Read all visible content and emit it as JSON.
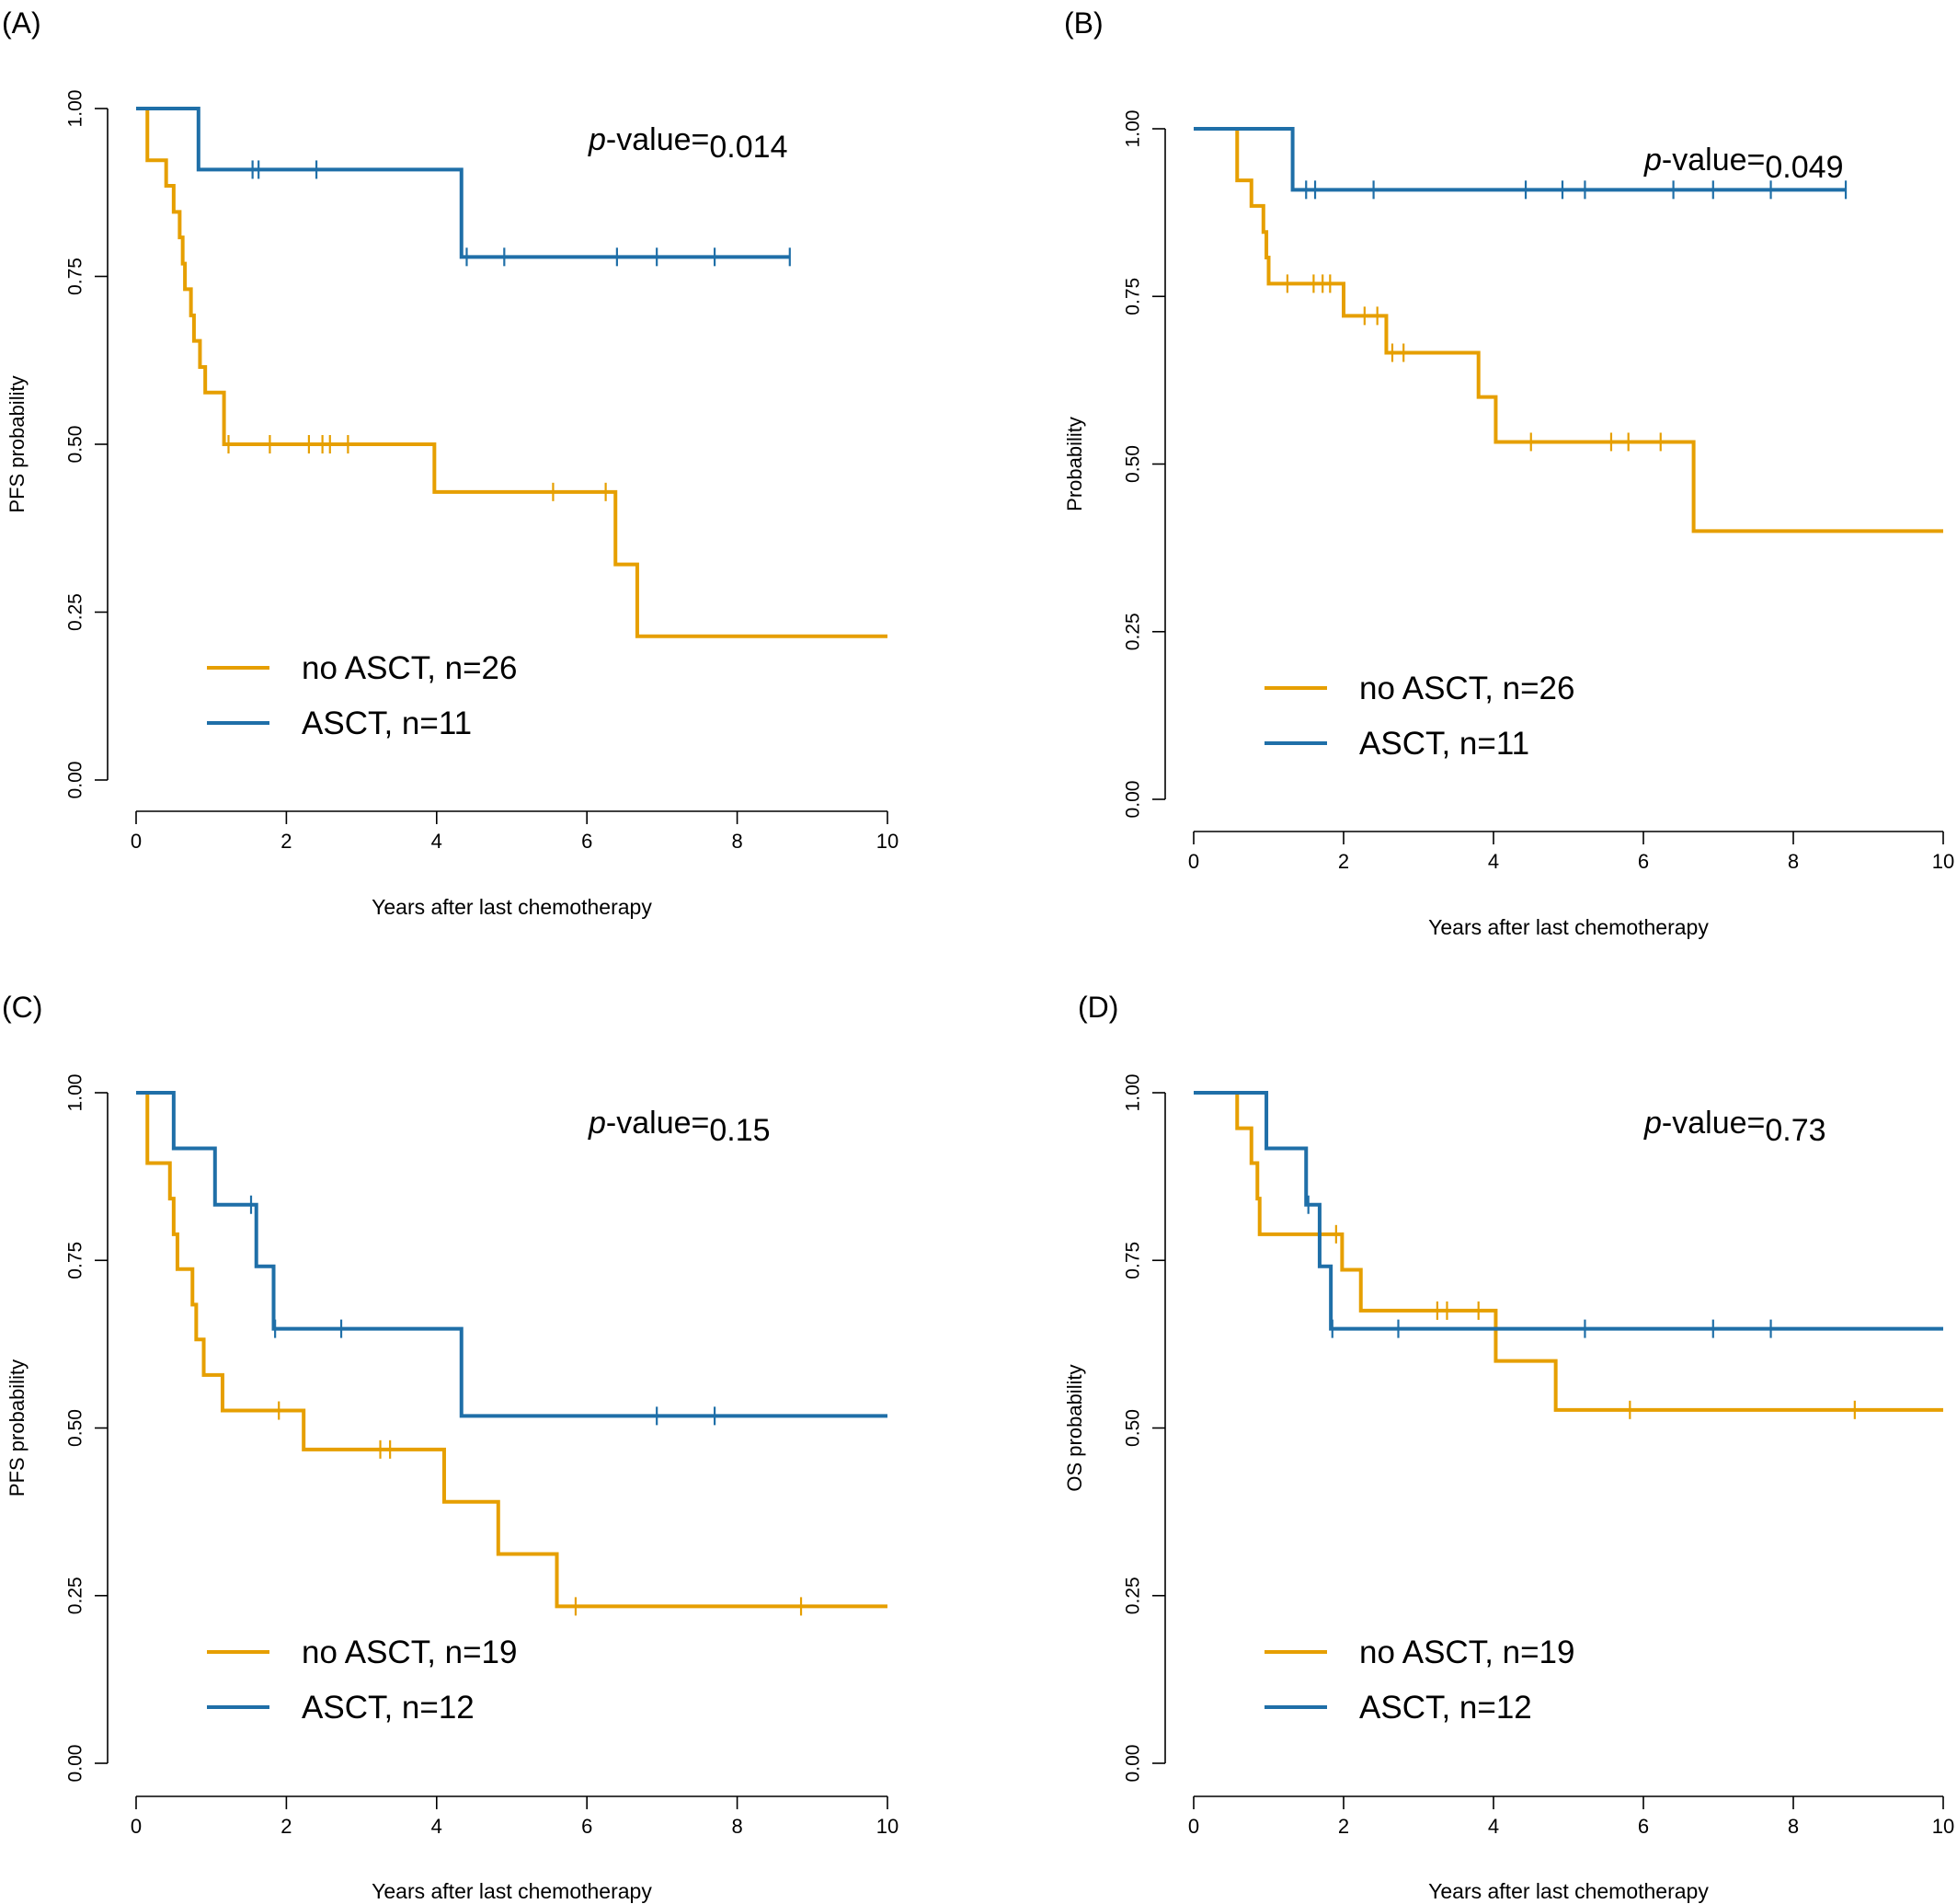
{
  "chart_data": [
    {
      "type": "line",
      "panel_label": "(A)",
      "ylabel": "PFS probability",
      "xlabel": "Years after last chemotherapy",
      "xlim": [
        0,
        10
      ],
      "ylim": [
        0,
        1
      ],
      "x_ticks": [
        "0",
        "2",
        "4",
        "6",
        "8",
        "10"
      ],
      "y_ticks": [
        "0.00",
        "0.25",
        "0.50",
        "0.75",
        "1.00"
      ],
      "pvalue_prefix": "p",
      "pvalue_mid": "-value=",
      "pvalue_value": "0.014",
      "legend": [
        "no ASCT, n=26",
        "ASCT, n=11"
      ],
      "series": [
        {
          "name": "no ASCT, n=26",
          "color": "#E69F00",
          "steps": [
            [
              0,
              1
            ],
            [
              0.15,
              0.923
            ],
            [
              0.4,
              0.885
            ],
            [
              0.5,
              0.846
            ],
            [
              0.58,
              0.808
            ],
            [
              0.62,
              0.769
            ],
            [
              0.65,
              0.731
            ],
            [
              0.73,
              0.692
            ],
            [
              0.77,
              0.654
            ],
            [
              0.85,
              0.615
            ],
            [
              0.92,
              0.577
            ],
            [
              1.17,
              0.5
            ],
            [
              3.97,
              0.429
            ],
            [
              6.38,
              0.321
            ],
            [
              6.67,
              0.214
            ],
            [
              10,
              0.214
            ]
          ],
          "censors": [
            [
              1.23,
              0.5
            ],
            [
              1.78,
              0.5
            ],
            [
              2.3,
              0.5
            ],
            [
              2.48,
              0.5
            ],
            [
              2.58,
              0.5
            ],
            [
              2.82,
              0.5
            ],
            [
              5.55,
              0.429
            ],
            [
              6.25,
              0.429
            ]
          ]
        },
        {
          "name": "ASCT, n=11",
          "color": "#1F6FA8",
          "steps": [
            [
              0,
              1
            ],
            [
              0.83,
              0.909
            ],
            [
              4.33,
              0.779
            ],
            [
              8.7,
              0.779
            ]
          ],
          "censors": [
            [
              1.55,
              0.909
            ],
            [
              1.63,
              0.909
            ],
            [
              2.4,
              0.909
            ],
            [
              4.4,
              0.779
            ],
            [
              4.9,
              0.779
            ],
            [
              6.4,
              0.779
            ],
            [
              6.93,
              0.779
            ],
            [
              7.7,
              0.779
            ],
            [
              8.7,
              0.779
            ]
          ]
        }
      ]
    },
    {
      "type": "line",
      "panel_label": "(B)",
      "ylabel": "Probability",
      "xlabel": "Years after last chemotherapy",
      "xlim": [
        0,
        10
      ],
      "ylim": [
        0,
        1
      ],
      "x_ticks": [
        "0",
        "2",
        "4",
        "6",
        "8",
        "10"
      ],
      "y_ticks": [
        "0.00",
        "0.25",
        "0.50",
        "0.75",
        "1.00"
      ],
      "pvalue_prefix": "p",
      "pvalue_mid": "-value=",
      "pvalue_value": "0.049",
      "legend": [
        "no ASCT, n=26",
        "ASCT, n=11"
      ],
      "series": [
        {
          "name": "no ASCT, n=26",
          "color": "#E69F00",
          "steps": [
            [
              0,
              1
            ],
            [
              0.58,
              0.923
            ],
            [
              0.77,
              0.885
            ],
            [
              0.93,
              0.846
            ],
            [
              0.97,
              0.808
            ],
            [
              1.0,
              0.769
            ],
            [
              2.0,
              0.721
            ],
            [
              2.57,
              0.666
            ],
            [
              3.8,
              0.6
            ],
            [
              4.03,
              0.533
            ],
            [
              6.67,
              0.4
            ],
            [
              10,
              0.4
            ]
          ],
          "censors": [
            [
              1.25,
              0.769
            ],
            [
              1.6,
              0.769
            ],
            [
              1.72,
              0.769
            ],
            [
              1.82,
              0.769
            ],
            [
              2.28,
              0.721
            ],
            [
              2.45,
              0.721
            ],
            [
              2.65,
              0.666
            ],
            [
              2.8,
              0.666
            ],
            [
              4.5,
              0.533
            ],
            [
              5.57,
              0.533
            ],
            [
              5.8,
              0.533
            ],
            [
              6.23,
              0.533
            ]
          ]
        },
        {
          "name": "ASCT, n=11",
          "color": "#1F6FA8",
          "steps": [
            [
              0,
              1
            ],
            [
              1.32,
              0.909
            ],
            [
              8.7,
              0.909
            ]
          ],
          "censors": [
            [
              1.5,
              0.909
            ],
            [
              1.62,
              0.909
            ],
            [
              2.4,
              0.909
            ],
            [
              4.43,
              0.909
            ],
            [
              4.92,
              0.909
            ],
            [
              5.22,
              0.909
            ],
            [
              6.4,
              0.909
            ],
            [
              6.93,
              0.909
            ],
            [
              7.7,
              0.909
            ],
            [
              8.7,
              0.909
            ]
          ]
        }
      ]
    },
    {
      "type": "line",
      "panel_label": "(C)",
      "ylabel": "PFS probability",
      "xlabel": "Years after last chemotherapy",
      "xlim": [
        0,
        10
      ],
      "ylim": [
        0,
        1
      ],
      "x_ticks": [
        "0",
        "2",
        "4",
        "6",
        "8",
        "10"
      ],
      "y_ticks": [
        "0.00",
        "0.25",
        "0.50",
        "0.75",
        "1.00"
      ],
      "pvalue_prefix": "p",
      "pvalue_mid": "-value=",
      "pvalue_value": "0.15",
      "legend": [
        "no ASCT, n=19",
        "ASCT, n=12"
      ],
      "series": [
        {
          "name": "no ASCT, n=19",
          "color": "#E69F00",
          "steps": [
            [
              0,
              1
            ],
            [
              0.15,
              0.895
            ],
            [
              0.45,
              0.842
            ],
            [
              0.5,
              0.789
            ],
            [
              0.55,
              0.737
            ],
            [
              0.75,
              0.684
            ],
            [
              0.8,
              0.632
            ],
            [
              0.9,
              0.579
            ],
            [
              1.15,
              0.526
            ],
            [
              2.23,
              0.468
            ],
            [
              4.1,
              0.39
            ],
            [
              4.82,
              0.312
            ],
            [
              5.6,
              0.234
            ],
            [
              10,
              0.234
            ]
          ],
          "censors": [
            [
              1.9,
              0.526
            ],
            [
              3.25,
              0.468
            ],
            [
              3.38,
              0.468
            ],
            [
              5.85,
              0.234
            ],
            [
              8.85,
              0.234
            ]
          ]
        },
        {
          "name": "ASCT, n=12",
          "color": "#1F6FA8",
          "steps": [
            [
              0,
              1
            ],
            [
              0.5,
              0.917
            ],
            [
              1.05,
              0.833
            ],
            [
              1.6,
              0.741
            ],
            [
              1.83,
              0.648
            ],
            [
              4.33,
              0.518
            ],
            [
              10,
              0.518
            ]
          ],
          "censors": [
            [
              1.53,
              0.833
            ],
            [
              1.85,
              0.648
            ],
            [
              2.73,
              0.648
            ],
            [
              6.93,
              0.518
            ],
            [
              7.7,
              0.518
            ]
          ]
        }
      ]
    },
    {
      "type": "line",
      "panel_label": "(D)",
      "ylabel": "OS probability",
      "xlabel": "Years after last chemotherapy",
      "xlim": [
        0,
        10
      ],
      "ylim": [
        0,
        1
      ],
      "x_ticks": [
        "0",
        "2",
        "4",
        "6",
        "8",
        "10"
      ],
      "y_ticks": [
        "0.00",
        "0.25",
        "0.50",
        "0.75",
        "1.00"
      ],
      "pvalue_prefix": "p",
      "pvalue_mid": "-value=",
      "pvalue_value": "0.73",
      "legend": [
        "no ASCT, n=19",
        "ASCT, n=12"
      ],
      "series": [
        {
          "name": "no ASCT, n=19",
          "color": "#E69F00",
          "steps": [
            [
              0,
              1
            ],
            [
              0.58,
              0.947
            ],
            [
              0.77,
              0.895
            ],
            [
              0.85,
              0.842
            ],
            [
              0.88,
              0.789
            ],
            [
              1.98,
              0.736
            ],
            [
              2.23,
              0.675
            ],
            [
              4.03,
              0.6
            ],
            [
              4.83,
              0.527
            ],
            [
              10,
              0.527
            ]
          ],
          "censors": [
            [
              1.9,
              0.789
            ],
            [
              3.25,
              0.675
            ],
            [
              3.38,
              0.675
            ],
            [
              3.8,
              0.675
            ],
            [
              5.82,
              0.527
            ],
            [
              8.82,
              0.527
            ]
          ]
        },
        {
          "name": "ASCT, n=12",
          "color": "#1F6FA8",
          "steps": [
            [
              0,
              1
            ],
            [
              0.97,
              0.917
            ],
            [
              1.5,
              0.833
            ],
            [
              1.68,
              0.741
            ],
            [
              1.83,
              0.648
            ],
            [
              10,
              0.648
            ]
          ],
          "censors": [
            [
              1.53,
              0.833
            ],
            [
              1.85,
              0.648
            ],
            [
              2.73,
              0.648
            ],
            [
              5.22,
              0.648
            ],
            [
              6.93,
              0.648
            ],
            [
              7.7,
              0.648
            ]
          ]
        }
      ]
    }
  ]
}
